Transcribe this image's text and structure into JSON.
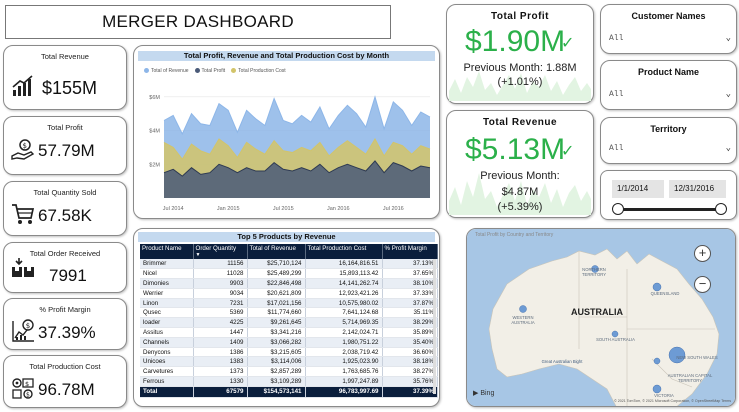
{
  "dashboard": {
    "title": "MERGER DASHBOARD"
  },
  "kpis": [
    {
      "label": "Total Revenue",
      "value": "$155M",
      "icon": "revenue-growth-icon"
    },
    {
      "label": "Total Profit",
      "value": "57.79M",
      "icon": "money-hand-icon"
    },
    {
      "label": "Total Quantity Sold",
      "value": "67.58K",
      "icon": "shopping-cart-icon"
    },
    {
      "label": "Total Order Received",
      "value": "7991",
      "icon": "boxes-icon"
    },
    {
      "label": "% Profit Margin",
      "value": "37.39%",
      "icon": "profit-chart-icon"
    },
    {
      "label": "Total Production Cost",
      "value": "96.78M",
      "icon": "production-cost-icon"
    }
  ],
  "line_chart": {
    "title": "Total Profit, Revenue and Total Production Cost by Month",
    "legend": [
      "Total of Revenue",
      "Total Profit",
      "Total Production Cost"
    ]
  },
  "chart_data": {
    "type": "area",
    "title": "Total Profit, Revenue and Total Production Cost by Month",
    "x_ticks": [
      "Jul 2014",
      "Jan 2015",
      "Jul 2015",
      "Jan 2016",
      "Jul 2016"
    ],
    "y_ticks": [
      "$6M",
      "$4M",
      "$2M"
    ],
    "ylim": [
      0,
      7
    ],
    "x": [
      1,
      2,
      3,
      4,
      5,
      6,
      7,
      8,
      9,
      10,
      11,
      12,
      13,
      14,
      15,
      16,
      17,
      18,
      19,
      20,
      21,
      22,
      23,
      24,
      25,
      26,
      27,
      28,
      29,
      30
    ],
    "series": [
      {
        "name": "Total of Revenue",
        "color": "#8db6e8",
        "values": [
          4.6,
          4.9,
          3.8,
          5.0,
          4.4,
          4.3,
          5.6,
          5.2,
          3.9,
          5.2,
          4.7,
          4.3,
          5.9,
          4.6,
          4.4,
          4.9,
          4.5,
          5.4,
          4.1,
          4.9,
          5.5,
          5.0,
          4.2,
          6.0,
          4.1,
          5.7,
          5.2,
          4.3,
          5.1,
          4.8
        ]
      },
      {
        "name": "Total Production Cost",
        "color": "#d2c46a",
        "values": [
          3.3,
          3.0,
          2.3,
          3.2,
          2.8,
          2.6,
          3.5,
          3.1,
          2.4,
          3.3,
          2.9,
          2.6,
          3.4,
          2.8,
          2.7,
          3.0,
          2.8,
          3.3,
          2.5,
          3.0,
          3.4,
          3.0,
          2.6,
          3.5,
          2.5,
          3.3,
          3.1,
          2.6,
          3.1,
          2.9
        ]
      },
      {
        "name": "Total Profit",
        "color": "#4a5a78",
        "values": [
          1.5,
          1.7,
          1.3,
          1.8,
          1.4,
          1.5,
          2.0,
          1.8,
          1.5,
          1.8,
          1.6,
          1.6,
          2.1,
          1.7,
          1.6,
          1.8,
          1.6,
          2.0,
          1.5,
          1.8,
          2.0,
          1.8,
          1.6,
          2.2,
          1.5,
          2.1,
          1.9,
          1.6,
          1.9,
          1.8
        ]
      }
    ]
  },
  "table": {
    "title": "Top 5 Products by Revenue",
    "headers": [
      "Product Name",
      "Order Quantity",
      "Total of Revenue",
      "Total Production Cost",
      "% Profit Margin"
    ],
    "rows": [
      [
        "Brimmer",
        "11156",
        "$25,710,124",
        "16,164,816.51",
        "37.13%"
      ],
      [
        "Nicel",
        "11028",
        "$25,489,299",
        "15,893,113.42",
        "37.65%"
      ],
      [
        "Dimonies",
        "9903",
        "$22,846,498",
        "14,141,262.74",
        "38.10%"
      ],
      [
        "Werrier",
        "9034",
        "$20,621,809",
        "12,923,421.26",
        "37.33%"
      ],
      [
        "Linon",
        "7231",
        "$17,021,156",
        "10,575,980.02",
        "37.87%"
      ],
      [
        "Qusec",
        "5369",
        "$11,774,660",
        "7,641,124.68",
        "35.11%"
      ],
      [
        "loader",
        "4225",
        "$9,261,645",
        "5,714,969.35",
        "38.29%"
      ],
      [
        "Assitus",
        "1447",
        "$3,341,216",
        "2,142,024.71",
        "35.89%"
      ],
      [
        "Channels",
        "1409",
        "$3,066,282",
        "1,980,751.22",
        "35.40%"
      ],
      [
        "Denycons",
        "1386",
        "$3,215,605",
        "2,038,719.42",
        "36.60%"
      ],
      [
        "Unicoes",
        "1383",
        "$3,114,006",
        "1,925,023.90",
        "38.18%"
      ],
      [
        "Carvetures",
        "1373",
        "$2,857,289",
        "1,763,685.76",
        "38.27%"
      ],
      [
        "Ferrous",
        "1330",
        "$3,109,289",
        "1,997,247.89",
        "35.76%"
      ]
    ],
    "total": [
      "Total",
      "67579",
      "$154,573,141",
      "96,783,997.69",
      "37.39%"
    ]
  },
  "profit_card": {
    "title": "Total  Profit",
    "value": "$1.90M",
    "sub1": "Previous Month: 1.88M",
    "sub2": "(+1.01%)"
  },
  "revenue_card": {
    "title": "Total  Revenue",
    "value": "$5.13M",
    "sub1": "Previous Month:",
    "sub2": "$4.87M",
    "sub3": "(+5.39%)"
  },
  "slicers": {
    "customer": {
      "title": "Customer Names",
      "value": "All"
    },
    "product": {
      "title": "Product Name",
      "value": "All"
    },
    "territory": {
      "title": "Territory",
      "value": "All"
    },
    "date_start": "1/1/2014",
    "date_end": "12/31/2016"
  },
  "map": {
    "title": "Total Profit by Country and Territory",
    "country_label": "AUSTRALIA",
    "labels": [
      "NORTHERN TERRITORY",
      "QUEENSLAND",
      "WESTERN AUSTRALIA",
      "SOUTH AUSTRALIA",
      "NEW SOUTH WALES",
      "Great Australian Bight",
      "AUSTRALIAN CAPITAL TERRITORY",
      "VICTORIA"
    ],
    "attribution": "© 2021 TomTom, © 2021 Microsoft Corporation, © OpenStreetMap  Terms",
    "brand": "Bing"
  },
  "colors": {
    "accent_green": "#2bb04a",
    "header_navy": "#0a1e3c",
    "title_bar": "#c4d9ef",
    "ocean": "#a7c6e5",
    "land": "#f2efe7"
  }
}
